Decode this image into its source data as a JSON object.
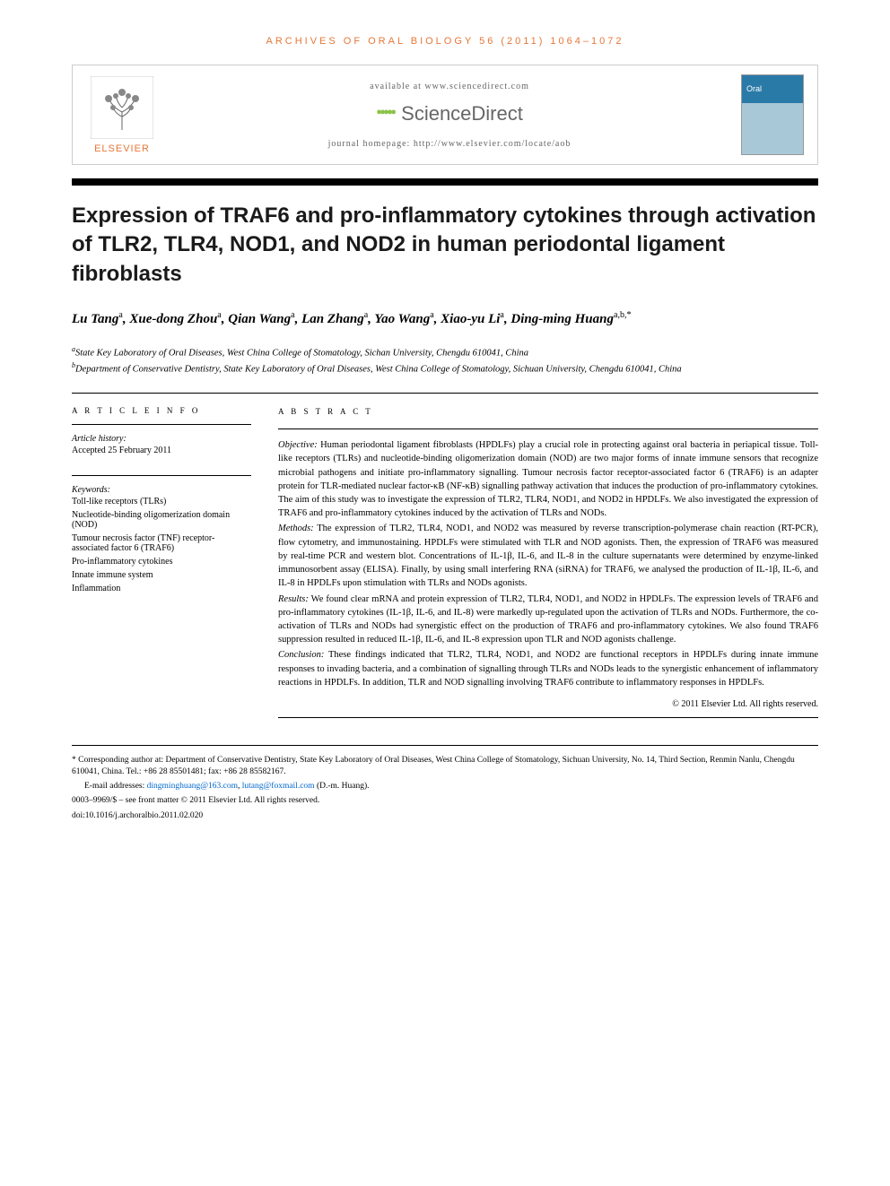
{
  "header": {
    "journal_ref": "ARCHIVES OF ORAL BIOLOGY 56 (2011) 1064–1072",
    "available": "available at www.sciencedirect.com",
    "sciencedirect": "ScienceDirect",
    "homepage": "journal homepage: http://www.elsevier.com/locate/aob",
    "elsevier": "ELSEVIER",
    "cover_title": "Oral"
  },
  "title": "Expression of TRAF6 and pro-inflammatory cytokines through activation of TLR2, TLR4, NOD1, and NOD2 in human periodontal ligament fibroblasts",
  "authors_html": "Lu Tang<sup>a</sup>, Xue-dong Zhou<sup>a</sup>, Qian Wang<sup>a</sup>, Lan Zhang<sup>a</sup>, Yao Wang<sup>a</sup>, Xiao-yu Li<sup>a</sup>, Ding-ming Huang<sup>a,b,*</sup>",
  "affiliations": [
    {
      "sup": "a",
      "text": "State Key Laboratory of Oral Diseases, West China College of Stomatology, Sichan University, Chengdu 610041, China"
    },
    {
      "sup": "b",
      "text": "Department of Conservative Dentistry, State Key Laboratory of Oral Diseases, West China College of Stomatology, Sichuan University, Chengdu 610041, China"
    }
  ],
  "info": {
    "heading": "A R T I C L E   I N F O",
    "history_label": "Article history:",
    "history": "Accepted 25 February 2011",
    "keywords_label": "Keywords:",
    "keywords": [
      "Toll-like receptors (TLRs)",
      "Nucleotide-binding oligomerization domain (NOD)",
      "Tumour necrosis factor (TNF) receptor-associated factor 6 (TRAF6)",
      "Pro-inflammatory cytokines",
      "Innate immune system",
      "Inflammation"
    ]
  },
  "abstract": {
    "heading": "A B S T R A C T",
    "sections": [
      {
        "label": "Objective:",
        "text": " Human periodontal ligament fibroblasts (HPDLFs) play a crucial role in protecting against oral bacteria in periapical tissue. Toll-like receptors (TLRs) and nucleotide-binding oligomerization domain (NOD) are two major forms of innate immune sensors that recognize microbial pathogens and initiate pro-inflammatory signalling. Tumour necrosis factor receptor-associated factor 6 (TRAF6) is an adapter protein for TLR-mediated nuclear factor-κB (NF-κB) signalling pathway activation that induces the production of pro-inflammatory cytokines. The aim of this study was to investigate the expression of TLR2, TLR4, NOD1, and NOD2 in HPDLFs. We also investigated the expression of TRAF6 and pro-inflammatory cytokines induced by the activation of TLRs and NODs."
      },
      {
        "label": "Methods:",
        "text": " The expression of TLR2, TLR4, NOD1, and NOD2 was measured by reverse transcription-polymerase chain reaction (RT-PCR), flow cytometry, and immunostaining. HPDLFs were stimulated with TLR and NOD agonists. Then, the expression of TRAF6 was measured by real-time PCR and western blot. Concentrations of IL-1β, IL-6, and IL-8 in the culture supernatants were determined by enzyme-linked immunosorbent assay (ELISA). Finally, by using small interfering RNA (siRNA) for TRAF6, we analysed the production of IL-1β, IL-6, and IL-8 in HPDLFs upon stimulation with TLRs and NODs agonists."
      },
      {
        "label": "Results:",
        "text": " We found clear mRNA and protein expression of TLR2, TLR4, NOD1, and NOD2 in HPDLFs. The expression levels of TRAF6 and pro-inflammatory cytokines (IL-1β, IL-6, and IL-8) were markedly up-regulated upon the activation of TLRs and NODs. Furthermore, the co-activation of TLRs and NODs had synergistic effect on the production of TRAF6 and pro-inflammatory cytokines. We also found TRAF6 suppression resulted in reduced IL-1β, IL-6, and IL-8 expression upon TLR and NOD agonists challenge."
      },
      {
        "label": "Conclusion:",
        "text": " These findings indicated that TLR2, TLR4, NOD1, and NOD2 are functional receptors in HPDLFs during innate immune responses to invading bacteria, and a combination of signalling through TLRs and NODs leads to the synergistic enhancement of inflammatory reactions in HPDLFs. In addition, TLR and NOD signalling involving TRAF6 contribute to inflammatory responses in HPDLFs."
      }
    ],
    "copyright": "© 2011 Elsevier Ltd. All rights reserved."
  },
  "footer": {
    "corresponding": "* Corresponding author at: Department of Conservative Dentistry, State Key Laboratory of Oral Diseases, West China College of Stomatology, Sichuan University, No. 14, Third Section, Renmin Nanlu, Chengdu 610041, China. Tel.: +86 28 85501481; fax: +86 28 85582167.",
    "email_label": "E-mail addresses: ",
    "email1": "dingminghuang@163.com",
    "email_sep": ", ",
    "email2": "lutang@foxmail.com",
    "email_suffix": " (D.-m. Huang).",
    "issn": "0003–9969/$ – see front matter © 2011 Elsevier Ltd. All rights reserved.",
    "doi": "doi:10.1016/j.archoralbio.2011.02.020"
  },
  "colors": {
    "orange": "#e67738",
    "blue_cover": "#2a7aa8",
    "link_blue": "#0066cc",
    "sd_green": "#8bc34a"
  }
}
